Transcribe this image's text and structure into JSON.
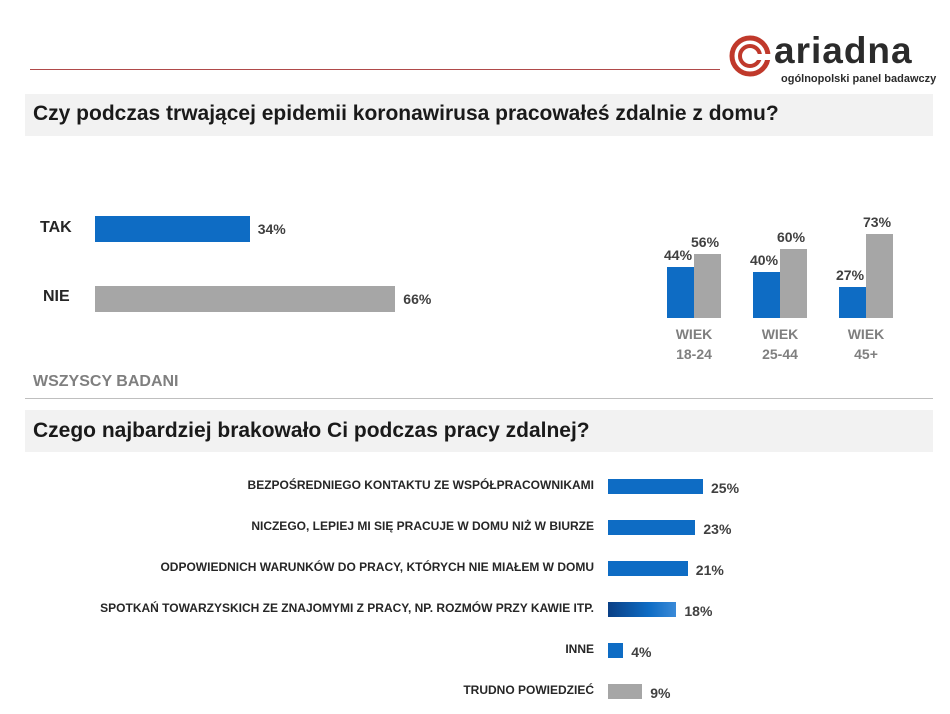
{
  "brand": {
    "name": "ariadna",
    "tagline": "ogólnopolski panel badawczy",
    "color": "#c0392b"
  },
  "colors": {
    "blue": "#0e6cc4",
    "gray": "#a6a6a6"
  },
  "question1": "Czy podczas trwającej epidemii koronawirusa pracowałeś zdalnie z domu?",
  "question2": "Czego najbardziej brakowało Ci podczas pracy zdalnej?",
  "all_respondents_label": "WSZYSCY BADANI",
  "chart_data": [
    {
      "type": "bar",
      "orientation": "horizontal",
      "categories": [
        "TAK",
        "NIE"
      ],
      "values": [
        34,
        66
      ],
      "value_labels": [
        "34%",
        "66%"
      ],
      "colors": [
        "#0e6cc4",
        "#a6a6a6"
      ]
    },
    {
      "type": "bar",
      "orientation": "vertical",
      "categories": [
        {
          "line1": "WIEK",
          "line2": "18-24"
        },
        {
          "line1": "WIEK",
          "line2": "25-44"
        },
        {
          "line1": "WIEK",
          "line2": "45+"
        }
      ],
      "series": [
        {
          "values": [
            44,
            40,
            27
          ],
          "labels": [
            "44%",
            "40%",
            "27%"
          ],
          "color": "#0e6cc4"
        },
        {
          "values": [
            56,
            60,
            73
          ],
          "labels": [
            "56%",
            "60%",
            "73%"
          ],
          "color": "#a6a6a6"
        }
      ]
    },
    {
      "type": "bar",
      "orientation": "horizontal",
      "categories": [
        "BEZPOŚREDNIEGO KONTAKTU ZE WSPÓŁPRACOWNIKAMI",
        "NICZEGO, LEPIEJ MI SIĘ PRACUJE W DOMU NIŻ W BIURZE",
        "ODPOWIEDNICH WARUNKÓW DO PRACY, KTÓRYCH NIE MIAŁEM W DOMU",
        "SPOTKAŃ TOWARZYSKICH ZE ZNAJOMYMI Z PRACY, NP. ROZMÓW PRZY KAWIE ITP.",
        "INNE",
        "TRUDNO POWIEDZIEĆ"
      ],
      "values": [
        25,
        23,
        21,
        18,
        4,
        9
      ],
      "value_labels": [
        "25%",
        "23%",
        "21%",
        "18%",
        "4%",
        "9%"
      ],
      "colors": [
        "#0e6cc4",
        "#0e6cc4",
        "#0e6cc4",
        "#0e6cc4",
        "#0e6cc4",
        "#a6a6a6"
      ]
    }
  ]
}
